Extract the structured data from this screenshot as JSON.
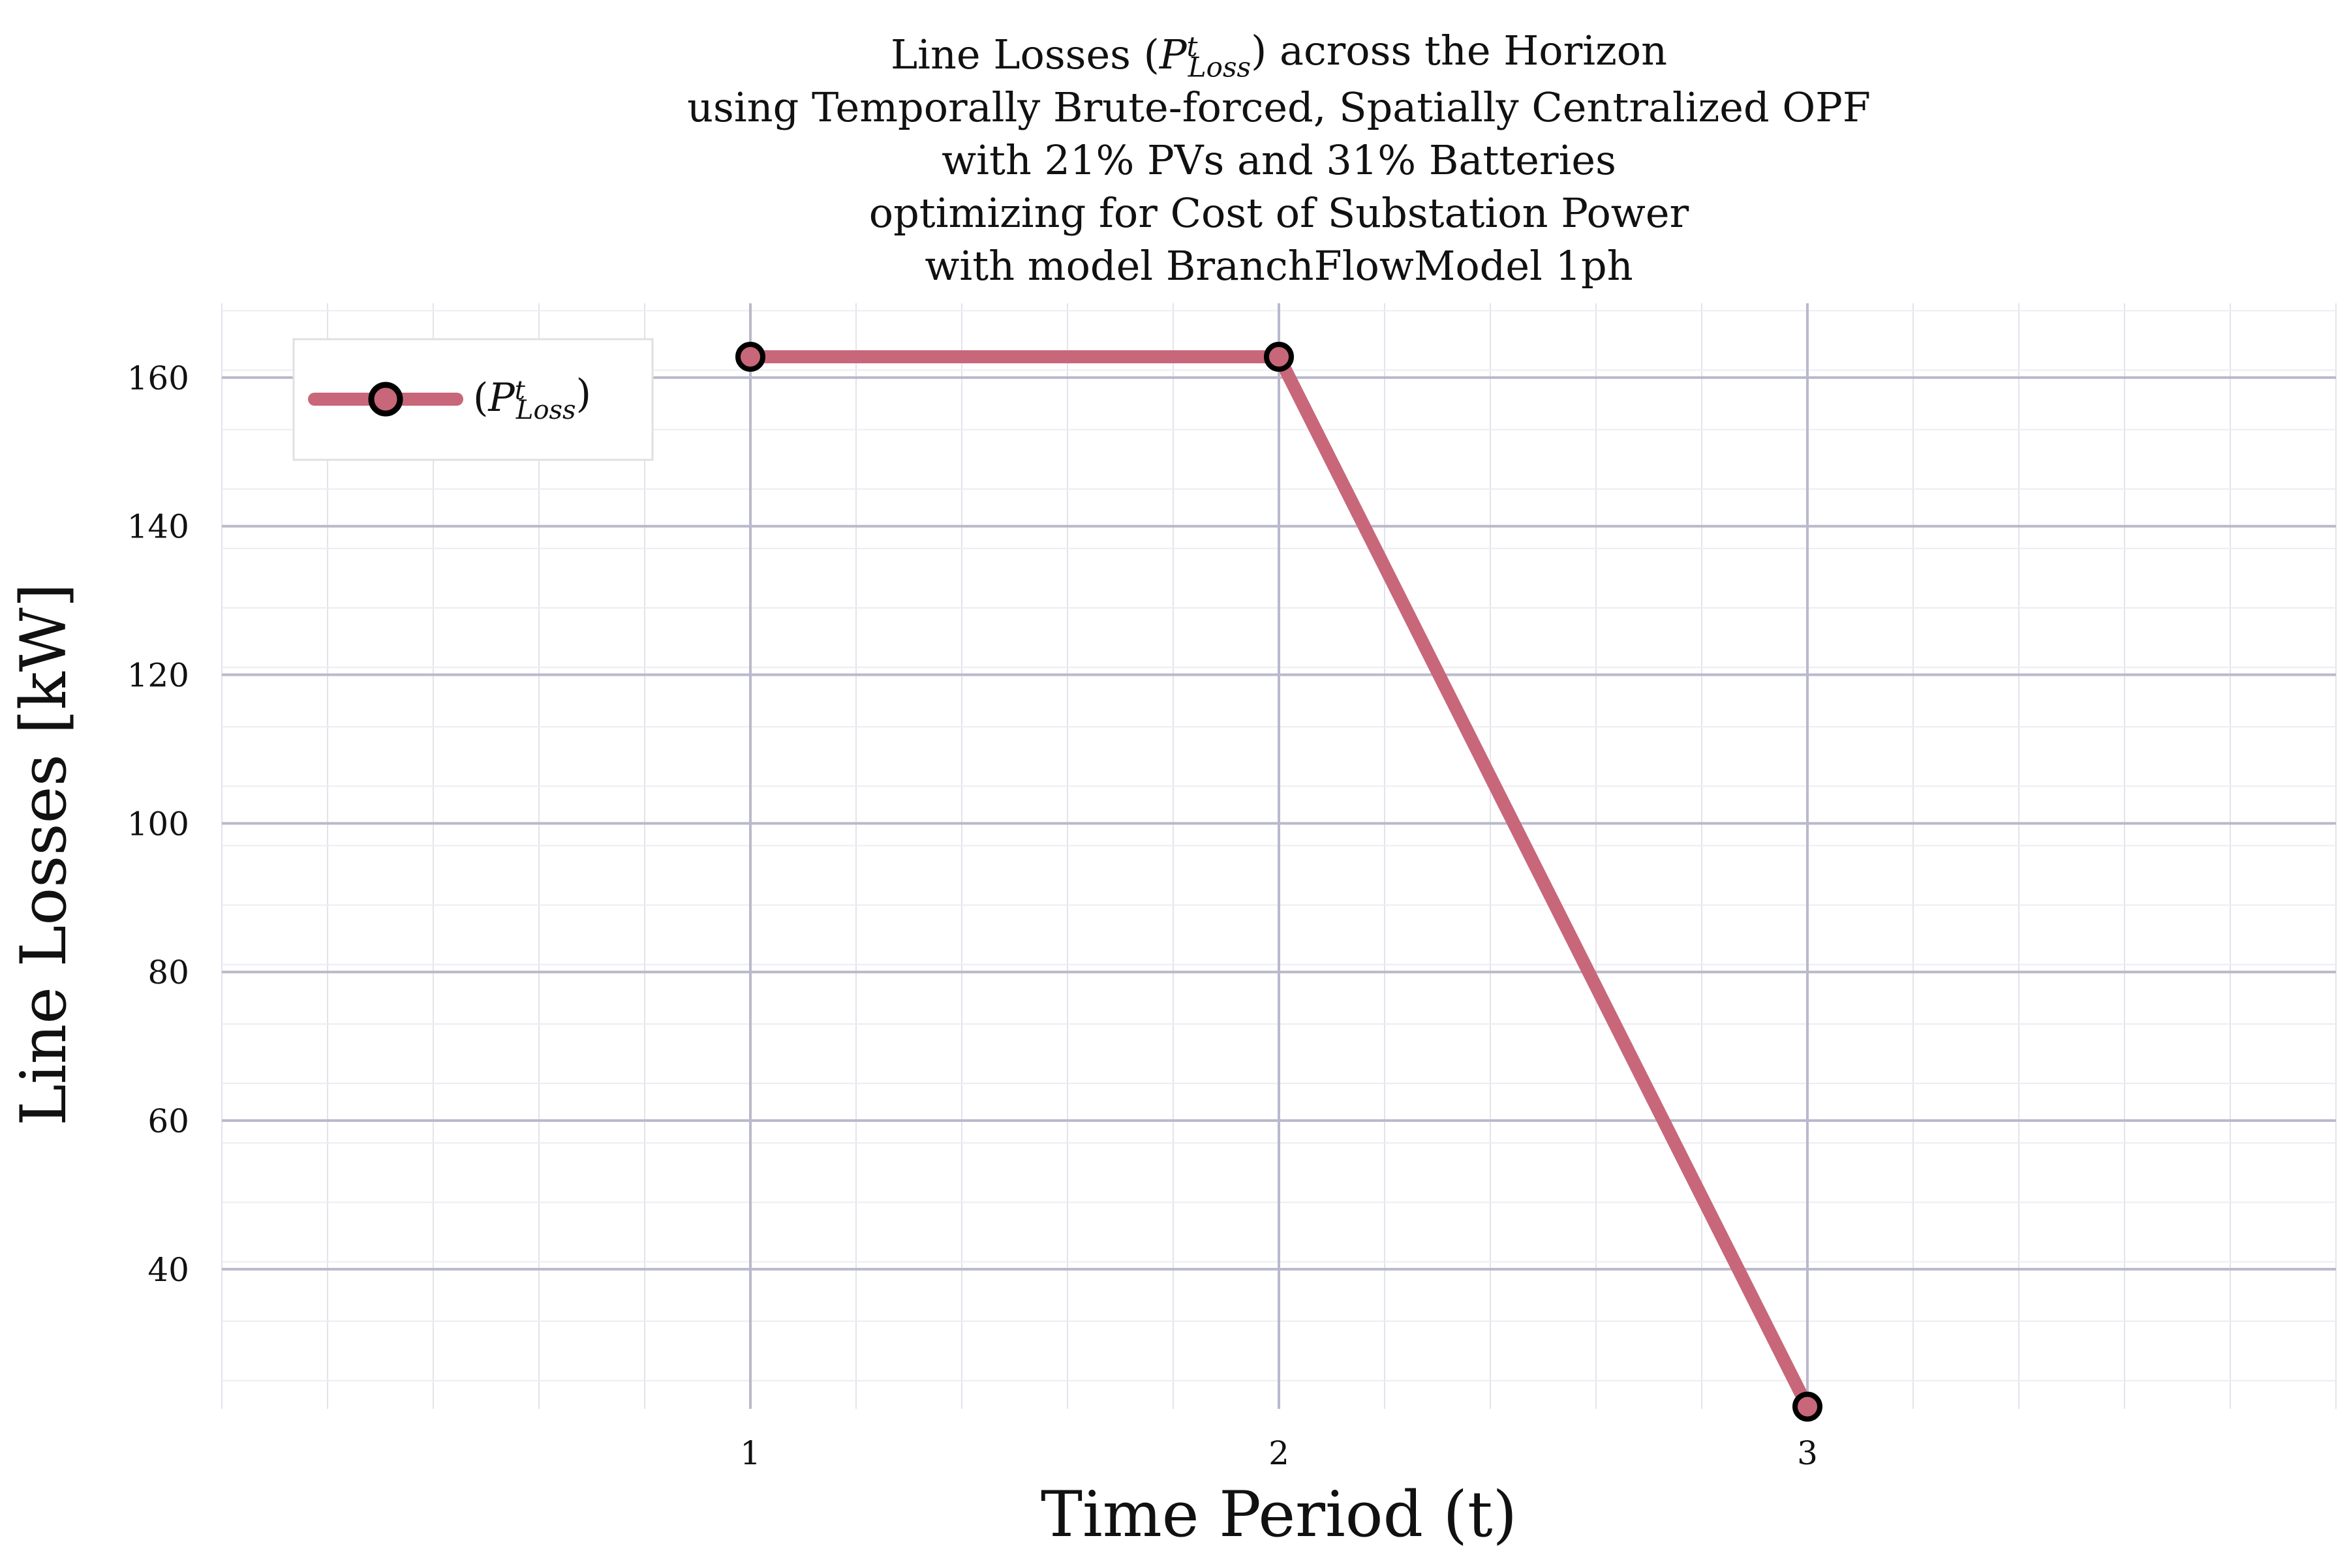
{
  "chart_data": {
    "type": "line",
    "title_lines": [
      "Line Losses (P^t_Loss) across the Horizon",
      "using Temporally Brute-forced, Spatially Centralized OPF",
      "with 21% PVs and 31% Batteries",
      "optimizing for Cost of Substation Power",
      "with model BranchFlowModel 1ph"
    ],
    "xlabel": "Time Period (t)",
    "ylabel": "Line Losses [kW]",
    "x_ticks": [
      1,
      2,
      3
    ],
    "y_ticks": [
      40,
      60,
      80,
      100,
      120,
      140,
      160
    ],
    "xlim": [
      0,
      4
    ],
    "ylim": [
      21.2,
      170
    ],
    "grid": true,
    "legend_position": "top-left",
    "series": [
      {
        "name": "(P^t_Loss)",
        "color": "#c8677a",
        "marker_edge_color": "#000000",
        "x": [
          1,
          2,
          3
        ],
        "values": [
          162.8,
          162.8,
          21.5
        ]
      }
    ]
  }
}
